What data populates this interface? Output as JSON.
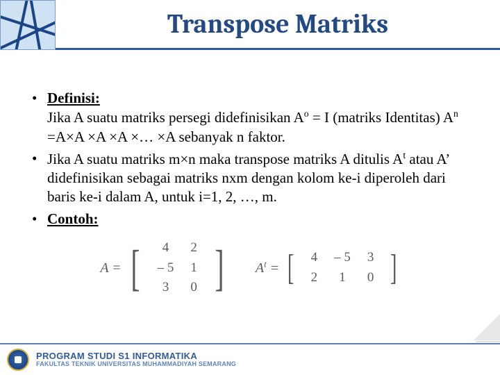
{
  "header": {
    "title": "Transpose Matriks"
  },
  "bullets": [
    {
      "label": "Definisi:",
      "label_bold": true,
      "label_underline": true,
      "body": "Jika A suatu matriks persegi didefinisikan Aᵒ = I (matriks Identitas) Aⁿ =A×A ×A ×A ×… ×A sebanyak n faktor."
    },
    {
      "body": "Jika A suatu matriks m×n maka transpose matriks A ditulis Aᵗ atau A’ didefinisikan sebagai matriks nxm dengan kolom ke-i diperoleh dari baris ke-i dalam A, untuk i=1, 2, …, m."
    },
    {
      "label": "Contoh:",
      "label_bold": true,
      "label_underline": true
    }
  ],
  "matrixA": {
    "name": "A =",
    "rows": [
      [
        "4",
        "2"
      ],
      [
        "– 5",
        "1"
      ],
      [
        "3",
        "0"
      ]
    ]
  },
  "matrixAt": {
    "name": "Aᵗ =",
    "rows": [
      [
        "4",
        "– 5",
        "3"
      ],
      [
        "2",
        "1",
        "0"
      ]
    ]
  },
  "footer": {
    "program": "PROGRAM STUDI S1 INFORMATIKA",
    "fakultas": "FAKULTAS TEKNIK UNIVERSITAS MUHAMMADIYAH SEMARANG"
  }
}
